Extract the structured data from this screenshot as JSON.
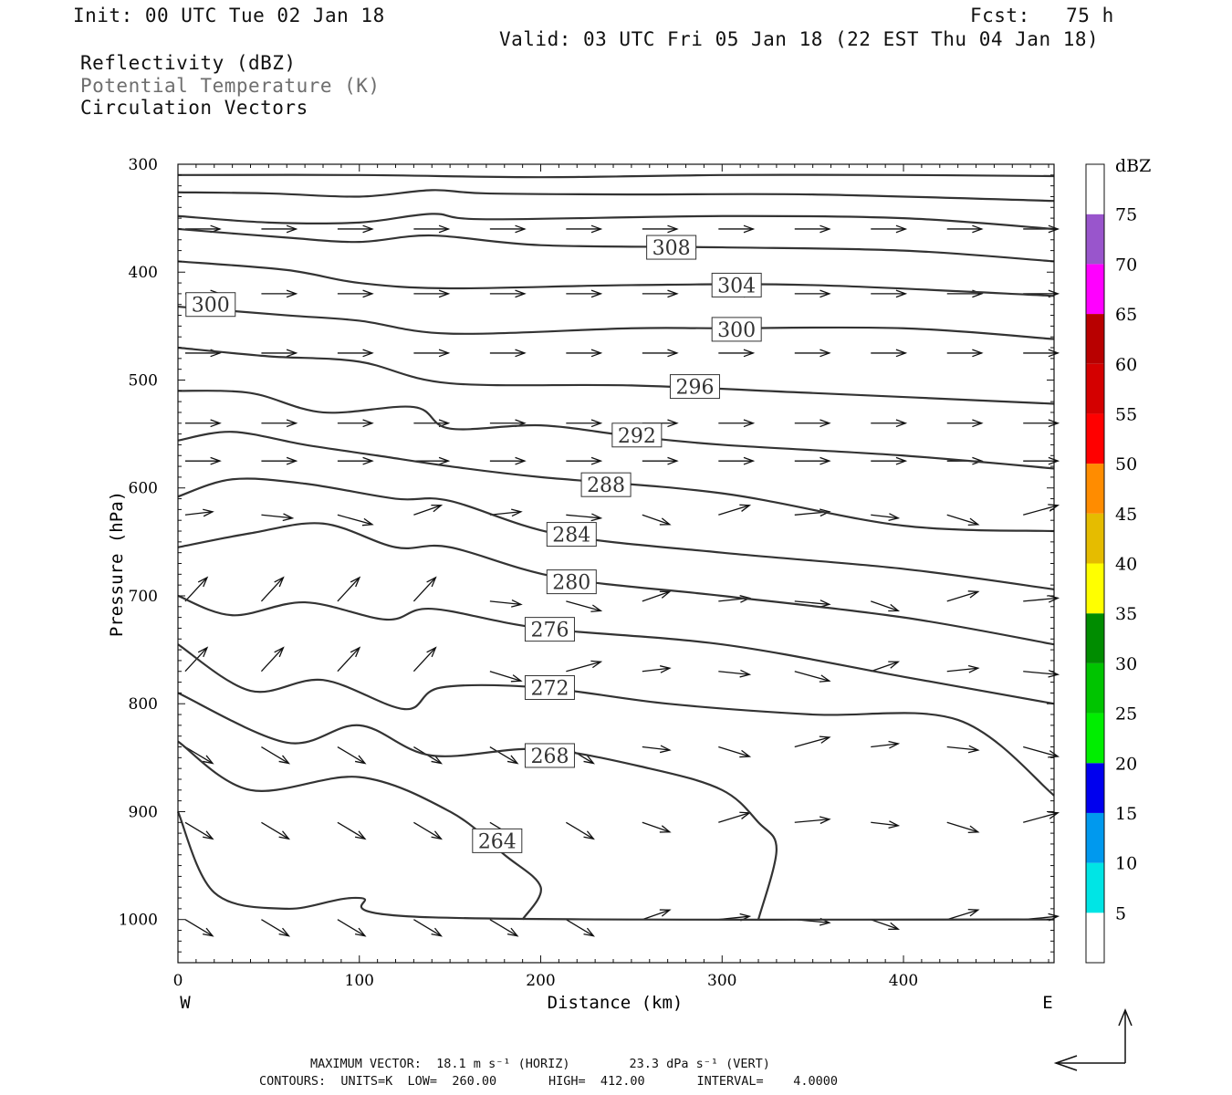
{
  "header": {
    "init": "Init: 00 UTC Tue 02 Jan 18",
    "fcst": "Fcst:   75 h",
    "valid": "Valid: 03 UTC Fri 05 Jan 18 (22 EST Thu 04 Jan 18)",
    "fields": [
      "Reflectivity (dBZ)",
      "Potential Temperature (K)",
      "Circulation Vectors"
    ]
  },
  "footer": {
    "max_vector": "MAXIMUM VECTOR:  18.1 m s⁻¹ (HORIZ)        23.3 dPa s⁻¹ (VERT)",
    "contours": "CONTOURS:  UNITS=K  LOW=  260.00       HIGH=  412.00       INTERVAL=    4.0000"
  },
  "chart_data": {
    "type": "cross-section (contour + vectors)",
    "xlabel": "Distance (km)",
    "ylabel": "Pressure (hPa)",
    "xlim": [
      0,
      483
    ],
    "ylim": [
      1040,
      300
    ],
    "xticks": [
      0,
      100,
      200,
      300,
      400
    ],
    "yticks": [
      300,
      400,
      500,
      600,
      700,
      800,
      900,
      1000
    ],
    "x_ends": {
      "left": "W",
      "right": "E"
    },
    "colorbar": {
      "unit": "dBZ",
      "levels": [
        5,
        10,
        15,
        20,
        25,
        30,
        35,
        40,
        45,
        50,
        55,
        60,
        65,
        70,
        75
      ],
      "colors": [
        "#ffffff",
        "#00e5e5",
        "#0099ee",
        "#0000ee",
        "#00ee00",
        "#00c400",
        "#008c00",
        "#ffff00",
        "#e5bc00",
        "#ff8c00",
        "#ff0000",
        "#d40000",
        "#b80000",
        "#ff00ff",
        "#9955cc",
        "#ffffff"
      ]
    },
    "theta_contours": [
      {
        "label": "",
        "points": [
          [
            0,
            310
          ],
          [
            100,
            310
          ],
          [
            200,
            312
          ],
          [
            300,
            310
          ],
          [
            400,
            310
          ],
          [
            483,
            311
          ]
        ]
      },
      {
        "label": "",
        "points": [
          [
            0,
            326
          ],
          [
            50,
            327
          ],
          [
            100,
            330
          ],
          [
            140,
            324
          ],
          [
            170,
            327
          ],
          [
            250,
            328
          ],
          [
            350,
            328
          ],
          [
            483,
            334
          ]
        ]
      },
      {
        "label": "",
        "points": [
          [
            0,
            348
          ],
          [
            50,
            354
          ],
          [
            100,
            354
          ],
          [
            140,
            346
          ],
          [
            170,
            351
          ],
          [
            300,
            348
          ],
          [
            400,
            350
          ],
          [
            483,
            360
          ]
        ]
      },
      {
        "label": "308",
        "label_at": [
          272,
          377
        ],
        "points": [
          [
            0,
            360
          ],
          [
            60,
            368
          ],
          [
            100,
            372
          ],
          [
            140,
            366
          ],
          [
            200,
            375
          ],
          [
            300,
            377
          ],
          [
            400,
            380
          ],
          [
            483,
            390
          ]
        ]
      },
      {
        "label": "304",
        "label_at": [
          308,
          412
        ],
        "points": [
          [
            0,
            390
          ],
          [
            60,
            398
          ],
          [
            100,
            410
          ],
          [
            150,
            415
          ],
          [
            250,
            412
          ],
          [
            350,
            412
          ],
          [
            483,
            422
          ]
        ]
      },
      {
        "label": "300",
        "label_at": [
          18,
          430
        ],
        "points": [
          [
            0,
            432
          ],
          [
            60,
            440
          ],
          [
            100,
            445
          ],
          [
            150,
            457
          ],
          [
            250,
            452
          ],
          [
            300,
            452
          ],
          [
            400,
            452
          ],
          [
            483,
            462
          ]
        ]
      },
      {
        "label": "300",
        "label_at": [
          308,
          453
        ],
        "points": []
      },
      {
        "label": "296",
        "label_at": [
          285,
          506
        ],
        "points": [
          [
            0,
            470
          ],
          [
            50,
            478
          ],
          [
            100,
            483
          ],
          [
            150,
            503
          ],
          [
            250,
            505
          ],
          [
            350,
            512
          ],
          [
            483,
            522
          ]
        ]
      },
      {
        "label": "292",
        "label_at": [
          253,
          551
        ],
        "points": [
          [
            0,
            510
          ],
          [
            40,
            512
          ],
          [
            80,
            530
          ],
          [
            130,
            525
          ],
          [
            150,
            545
          ],
          [
            200,
            542
          ],
          [
            250,
            552
          ],
          [
            300,
            560
          ],
          [
            400,
            570
          ],
          [
            483,
            582
          ]
        ]
      },
      {
        "label": "288",
        "label_at": [
          236,
          597
        ],
        "points": [
          [
            0,
            556
          ],
          [
            30,
            548
          ],
          [
            70,
            560
          ],
          [
            110,
            570
          ],
          [
            150,
            580
          ],
          [
            200,
            590
          ],
          [
            300,
            605
          ],
          [
            400,
            635
          ],
          [
            483,
            640
          ]
        ]
      },
      {
        "label": "284",
        "label_at": [
          217,
          643
        ],
        "points": [
          [
            0,
            608
          ],
          [
            30,
            592
          ],
          [
            70,
            596
          ],
          [
            120,
            610
          ],
          [
            150,
            612
          ],
          [
            210,
            643
          ],
          [
            300,
            660
          ],
          [
            400,
            675
          ],
          [
            483,
            694
          ]
        ]
      },
      {
        "label": "280",
        "label_at": [
          217,
          687
        ],
        "points": [
          [
            0,
            655
          ],
          [
            40,
            642
          ],
          [
            80,
            633
          ],
          [
            120,
            655
          ],
          [
            150,
            655
          ],
          [
            210,
            683
          ],
          [
            300,
            700
          ],
          [
            400,
            720
          ],
          [
            483,
            745
          ]
        ]
      },
      {
        "label": "276",
        "label_at": [
          205,
          731
        ],
        "points": [
          [
            0,
            700
          ],
          [
            30,
            718
          ],
          [
            70,
            706
          ],
          [
            115,
            722
          ],
          [
            140,
            712
          ],
          [
            200,
            730
          ],
          [
            300,
            745
          ],
          [
            400,
            775
          ],
          [
            483,
            800
          ]
        ]
      },
      {
        "label": "272",
        "label_at": [
          205,
          785
        ],
        "points": [
          [
            0,
            745
          ],
          [
            40,
            788
          ],
          [
            80,
            778
          ],
          [
            125,
            805
          ],
          [
            145,
            785
          ],
          [
            200,
            785
          ],
          [
            270,
            800
          ],
          [
            350,
            810
          ],
          [
            430,
            815
          ],
          [
            483,
            885
          ]
        ]
      },
      {
        "label": "268",
        "label_at": [
          205,
          848
        ],
        "points": [
          [
            0,
            790
          ],
          [
            60,
            836
          ],
          [
            100,
            820
          ],
          [
            140,
            848
          ],
          [
            200,
            842
          ],
          [
            260,
            860
          ],
          [
            300,
            880
          ],
          [
            320,
            910
          ],
          [
            330,
            935
          ],
          [
            320,
            1000
          ]
        ]
      },
      {
        "label": "264",
        "label_at": [
          176,
          927
        ],
        "points": [
          [
            0,
            835
          ],
          [
            40,
            880
          ],
          [
            100,
            868
          ],
          [
            150,
            900
          ],
          [
            180,
            940
          ],
          [
            200,
            970
          ],
          [
            190,
            1000
          ]
        ]
      },
      {
        "label": "",
        "points": [
          [
            0,
            900
          ],
          [
            20,
            975
          ],
          [
            60,
            990
          ],
          [
            100,
            980
          ],
          [
            140,
            998
          ],
          [
            483,
            1000
          ]
        ]
      }
    ],
    "vector_info": {
      "max_horiz": "18.1 m s-1",
      "max_vert": "23.3 dPa s-1"
    }
  }
}
